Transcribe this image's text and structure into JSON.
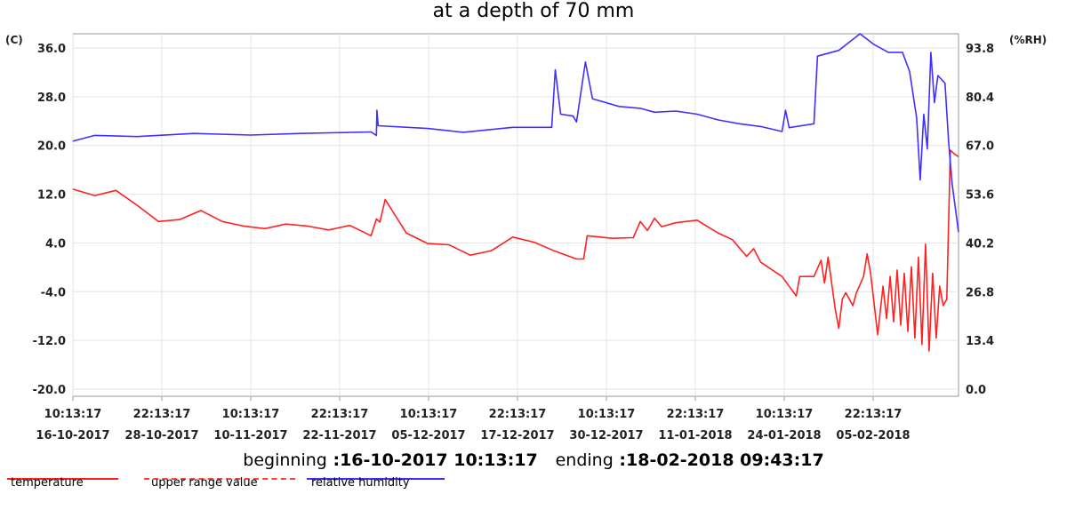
{
  "chart_data": {
    "type": "line",
    "title": "at a depth of 70 mm",
    "left_axis": {
      "unit_label": "(C)",
      "ticks": [
        "36.0",
        "28.0",
        "20.0",
        "12.0",
        "4.0",
        "-4.0",
        "-12.0",
        "-20.0"
      ],
      "ylim": [
        -20,
        36
      ]
    },
    "right_axis": {
      "unit_label": "(%RH)",
      "ticks": [
        "93.8",
        "80.4",
        "67.0",
        "53.6",
        "40.2",
        "26.8",
        "13.4",
        "0.0"
      ],
      "ylim": [
        0,
        93.8
      ]
    },
    "x_ticks": [
      {
        "time": "10:13:17",
        "date": "16-10-2017"
      },
      {
        "time": "22:13:17",
        "date": "28-10-2017"
      },
      {
        "time": "10:13:17",
        "date": "10-11-2017"
      },
      {
        "time": "22:13:17",
        "date": "22-11-2017"
      },
      {
        "time": "10:13:17",
        "date": "05-12-2017"
      },
      {
        "time": "22:13:17",
        "date": "17-12-2017"
      },
      {
        "time": "10:13:17",
        "date": "30-12-2017"
      },
      {
        "time": "22:13:17",
        "date": "11-01-2018"
      },
      {
        "time": "10:13:17",
        "date": "24-01-2018"
      },
      {
        "time": "22:13:17",
        "date": "05-02-2018"
      }
    ],
    "xlim": [
      "2017-10-16 10:13:17",
      "2018-02-18 09:43:17"
    ],
    "grid": true,
    "series": [
      {
        "name": "temperature",
        "axis": "left",
        "color": "#ff2020",
        "points": [
          [
            "2017-10-16 10:00",
            12.0
          ],
          [
            "2017-10-19 12:00",
            11.0
          ],
          [
            "2017-10-22 12:00",
            11.8
          ],
          [
            "2017-10-25 12:00",
            9.5
          ],
          [
            "2017-10-28 12:00",
            7.0
          ],
          [
            "2017-10-31 12:00",
            7.3
          ],
          [
            "2017-11-03 12:00",
            8.7
          ],
          [
            "2017-11-06 12:00",
            7.0
          ],
          [
            "2017-11-09 12:00",
            6.3
          ],
          [
            "2017-11-12 12:00",
            5.9
          ],
          [
            "2017-11-15 12:00",
            6.6
          ],
          [
            "2017-11-18 12:00",
            6.3
          ],
          [
            "2017-11-21 12:00",
            5.7
          ],
          [
            "2017-11-24 12:00",
            6.4
          ],
          [
            "2017-11-27 12:00",
            4.8
          ],
          [
            "2017-11-28 06:00",
            7.4
          ],
          [
            "2017-11-28 18:00",
            6.9
          ],
          [
            "2017-11-29 12:00",
            10.4
          ],
          [
            "2017-12-02 12:00",
            5.2
          ],
          [
            "2017-12-05 12:00",
            3.6
          ],
          [
            "2017-12-08 12:00",
            3.4
          ],
          [
            "2017-12-11 12:00",
            1.8
          ],
          [
            "2017-12-14 12:00",
            2.5
          ],
          [
            "2017-12-17 12:00",
            4.6
          ],
          [
            "2017-12-20 12:00",
            3.8
          ],
          [
            "2017-12-23 12:00",
            2.4
          ],
          [
            "2017-12-26 12:00",
            1.2
          ],
          [
            "2017-12-27 12:00",
            1.2
          ],
          [
            "2017-12-28 00:00",
            4.8
          ],
          [
            "2017-12-31 12:00",
            4.4
          ],
          [
            "2018-01-03 12:00",
            4.5
          ],
          [
            "2018-01-04 12:00",
            7.0
          ],
          [
            "2018-01-05 12:00",
            5.6
          ],
          [
            "2018-01-06 12:00",
            7.5
          ],
          [
            "2018-01-07 12:00",
            6.2
          ],
          [
            "2018-01-09 12:00",
            6.8
          ],
          [
            "2018-01-12 12:00",
            7.2
          ],
          [
            "2018-01-15 12:00",
            5.2
          ],
          [
            "2018-01-17 12:00",
            4.2
          ],
          [
            "2018-01-19 12:00",
            1.6
          ],
          [
            "2018-01-20 12:00",
            2.8
          ],
          [
            "2018-01-21 12:00",
            0.7
          ],
          [
            "2018-01-24 12:00",
            -1.5
          ],
          [
            "2018-01-26 12:00",
            -4.5
          ],
          [
            "2018-01-27 00:00",
            -1.5
          ],
          [
            "2018-01-29 00:00",
            -1.5
          ],
          [
            "2018-01-30 00:00",
            1.0
          ],
          [
            "2018-01-30 12:00",
            -2.5
          ],
          [
            "2018-01-31 00:00",
            1.5
          ],
          [
            "2018-02-01 00:00",
            -6.5
          ],
          [
            "2018-02-01 12:00",
            -9.5
          ],
          [
            "2018-02-02 00:00",
            -5.0
          ],
          [
            "2018-02-02 12:00",
            -4.0
          ],
          [
            "2018-02-03 12:00",
            -6.0
          ],
          [
            "2018-02-04 00:00",
            -4.0
          ],
          [
            "2018-02-05 00:00",
            -1.5
          ],
          [
            "2018-02-05 12:00",
            2.0
          ],
          [
            "2018-02-06 00:00",
            -1.0
          ],
          [
            "2018-02-07 00:00",
            -10.5
          ],
          [
            "2018-02-07 18:00",
            -3.0
          ],
          [
            "2018-02-08 06:00",
            -8.0
          ],
          [
            "2018-02-08 18:00",
            -1.5
          ],
          [
            "2018-02-09 06:00",
            -8.5
          ],
          [
            "2018-02-09 18:00",
            -0.5
          ],
          [
            "2018-02-10 06:00",
            -9.0
          ],
          [
            "2018-02-10 18:00",
            -1.0
          ],
          [
            "2018-02-11 06:00",
            -10.0
          ],
          [
            "2018-02-11 18:00",
            0.0
          ],
          [
            "2018-02-12 06:00",
            -11.0
          ],
          [
            "2018-02-12 18:00",
            1.5
          ],
          [
            "2018-02-13 06:00",
            -12.0
          ],
          [
            "2018-02-13 18:00",
            3.5
          ],
          [
            "2018-02-14 06:00",
            -13.0
          ],
          [
            "2018-02-14 18:00",
            -1.0
          ],
          [
            "2018-02-15 06:00",
            -11.0
          ],
          [
            "2018-02-15 18:00",
            -3.0
          ],
          [
            "2018-02-16 06:00",
            -6.0
          ],
          [
            "2018-02-16 18:00",
            -5.0
          ],
          [
            "2018-02-17 06:00",
            18.0
          ],
          [
            "2018-02-17 18:00",
            17.5
          ],
          [
            "2018-02-18 09:43",
            17.0
          ]
        ]
      },
      {
        "name": "upper range value",
        "axis": "left",
        "color": "#ff4040",
        "dashed": true,
        "points": []
      },
      {
        "name": "relative humidity",
        "axis": "right",
        "color": "#4030ff",
        "points": [
          [
            "2017-10-16 10:00",
            66.0
          ],
          [
            "2017-10-19 12:00",
            67.5
          ],
          [
            "2017-10-25 12:00",
            67.2
          ],
          [
            "2017-11-02 12:00",
            68.0
          ],
          [
            "2017-11-10 12:00",
            67.6
          ],
          [
            "2017-11-17 12:00",
            68.0
          ],
          [
            "2017-11-27 12:00",
            68.4
          ],
          [
            "2017-11-28 06:00",
            67.5
          ],
          [
            "2017-11-28 08:00",
            74.0
          ],
          [
            "2017-11-28 12:00",
            70.0
          ],
          [
            "2017-12-05 12:00",
            69.3
          ],
          [
            "2017-12-10 12:00",
            68.3
          ],
          [
            "2017-12-17 12:00",
            69.6
          ],
          [
            "2017-12-23 00:00",
            69.6
          ],
          [
            "2017-12-23 12:00",
            84.5
          ],
          [
            "2017-12-24 06:00",
            73.0
          ],
          [
            "2017-12-26 00:00",
            72.5
          ],
          [
            "2017-12-26 12:00",
            71.0
          ],
          [
            "2017-12-27 18:00",
            86.5
          ],
          [
            "2017-12-28 18:00",
            77.0
          ],
          [
            "2018-01-01 12:00",
            75.0
          ],
          [
            "2018-01-04 12:00",
            74.5
          ],
          [
            "2018-01-06 12:00",
            73.5
          ],
          [
            "2018-01-09 12:00",
            73.8
          ],
          [
            "2018-01-12 12:00",
            73.0
          ],
          [
            "2018-01-15 12:00",
            71.5
          ],
          [
            "2018-01-18 12:00",
            70.5
          ],
          [
            "2018-01-21 12:00",
            69.8
          ],
          [
            "2018-01-24 12:00",
            68.5
          ],
          [
            "2018-01-25 00:00",
            74.0
          ],
          [
            "2018-01-25 12:00",
            69.5
          ],
          [
            "2018-01-29 00:00",
            70.5
          ],
          [
            "2018-01-29 12:00",
            88.0
          ],
          [
            "2018-02-01 12:00",
            89.5
          ],
          [
            "2018-02-04 12:00",
            93.8
          ],
          [
            "2018-02-06 12:00",
            91.0
          ],
          [
            "2018-02-08 12:00",
            89.0
          ],
          [
            "2018-02-10 12:00",
            89.0
          ],
          [
            "2018-02-11 12:00",
            84.0
          ],
          [
            "2018-02-12 12:00",
            72.0
          ],
          [
            "2018-02-13 00:00",
            56.0
          ],
          [
            "2018-02-13 12:00",
            73.0
          ],
          [
            "2018-02-14 00:00",
            64.0
          ],
          [
            "2018-02-14 12:00",
            89.0
          ],
          [
            "2018-02-15 00:00",
            76.0
          ],
          [
            "2018-02-15 12:00",
            83.0
          ],
          [
            "2018-02-16 12:00",
            81.0
          ],
          [
            "2018-02-17 00:00",
            66.0
          ],
          [
            "2018-02-17 12:00",
            55.0
          ],
          [
            "2018-02-18 09:43",
            42.5
          ]
        ]
      }
    ],
    "range_label_start": "beginning",
    "range_start": ":16-10-2017 10:13:17",
    "range_label_end": "ending",
    "range_end": ":18-02-2018 09:43:17"
  }
}
